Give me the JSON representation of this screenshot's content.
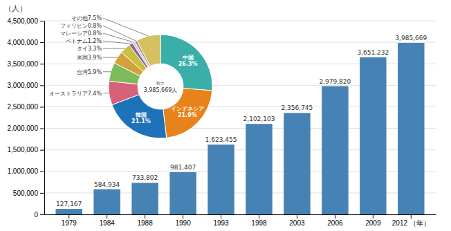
{
  "chart_data": [
    {
      "type": "bar",
      "ylabel": "（人）",
      "categories": [
        "1979",
        "1984",
        "1988",
        "1990",
        "1993",
        "1998",
        "2003",
        "2006",
        "2009",
        "2012 （年）"
      ],
      "values": [
        127167,
        584934,
        733802,
        981407,
        1623455,
        2102103,
        2356745,
        2979820,
        3651232,
        3985669
      ],
      "value_labels": [
        "127,167",
        "584,934",
        "733,802",
        "981,407",
        "1,623,455",
        "2,102,103",
        "2,356,745",
        "2,979,820",
        "3,651,232",
        "3,985,669"
      ],
      "data_labels": true,
      "ylim": [
        0,
        4500000
      ],
      "yticks": [
        0,
        {
          "value": 500000,
          "label": "500,000"
        },
        {
          "value": 1000000,
          "label": "1,000,000"
        },
        {
          "value": 1500000,
          "label": "1,500,000"
        },
        {
          "value": 2000000,
          "label": "2,000,000"
        },
        {
          "value": 2500000,
          "label": "2,500,000"
        },
        {
          "value": 3000000,
          "label": "3,000,000"
        },
        {
          "value": 3500000,
          "label": "3,500,000"
        },
        {
          "value": 4000000,
          "label": "4,000,000"
        },
        {
          "value": 4500000,
          "label": "4,500,000"
        }
      ],
      "grid": true
    },
    {
      "type": "pie",
      "categories": [
        "中国",
        "インドネシア",
        "韓国",
        "オーストラリア",
        "台湾",
        "米国",
        "タイ",
        "ベトナム",
        "マレーシア",
        "フィリピン",
        "その他"
      ],
      "values": [
        26.3,
        21.9,
        21.1,
        7.4,
        5.9,
        3.9,
        3.3,
        1.2,
        0.8,
        0.8,
        7.5
      ],
      "value_labels": [
        "26.3%",
        "21.9%",
        "21.1%",
        "7.4%",
        "5.9%",
        "3.9%",
        "3.3%",
        "1.2%",
        "0.8%",
        "0.8%",
        "7.5%"
      ],
      "data_labels": true,
      "colors": [
        "#3AAFA9",
        "#E8821A",
        "#1E72B8",
        "#D8607A",
        "#7FBA5A",
        "#D4A03A",
        "#C8C040",
        "#9060A0",
        "#C0D0C0",
        "#B09080",
        "#D4C060"
      ],
      "annotations": [
        "n=\n3,985,669人"
      ]
    }
  ]
}
